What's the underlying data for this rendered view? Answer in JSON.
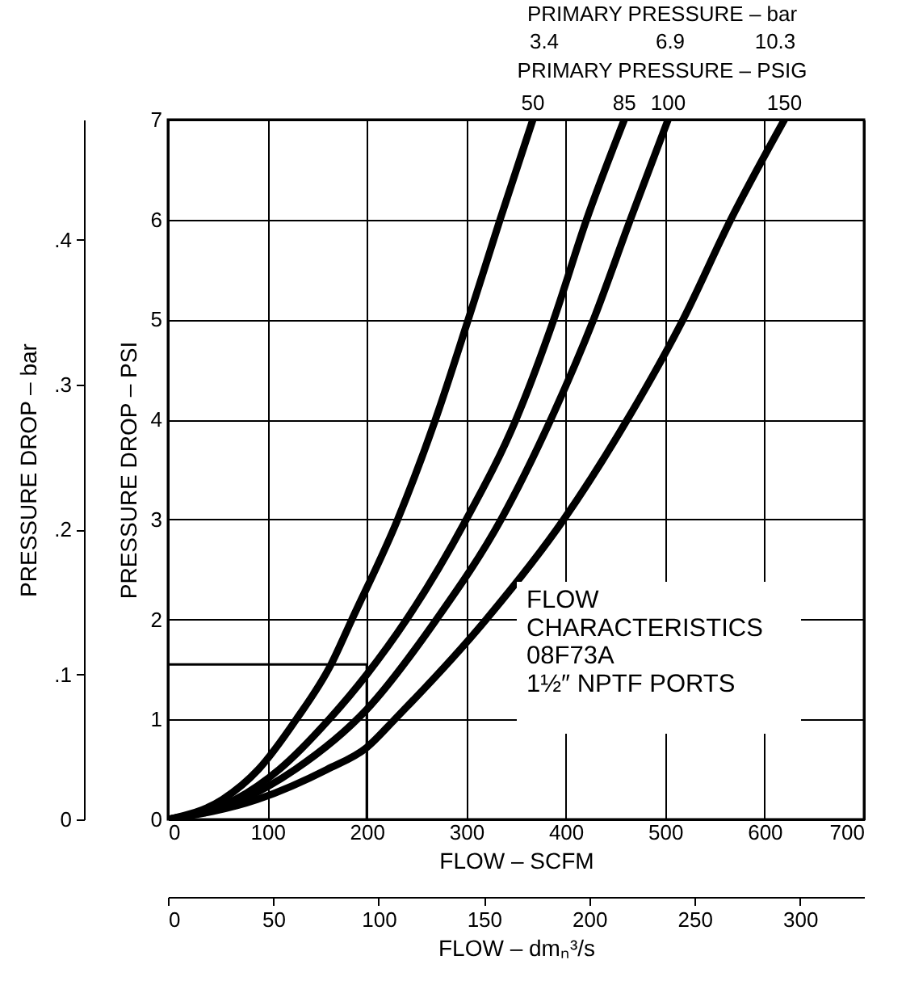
{
  "chart_data": {
    "type": "line",
    "xlabel": "FLOW – SCFM",
    "ylabel": "PRESSURE DROP – PSI",
    "y2label": "PRESSURE DROP – bar",
    "x2label": "FLOW – dmₙ³/s",
    "xlim": [
      0,
      700
    ],
    "xticks": [
      0,
      100,
      200,
      300,
      400,
      500,
      600,
      700
    ],
    "ylim": [
      0,
      7
    ],
    "yticks": [
      0,
      1,
      2,
      3,
      4,
      5,
      6,
      7
    ],
    "y2lim": [
      0,
      0.483
    ],
    "y2ticks": [
      0,
      {
        "value": 0.1,
        "label": ".1"
      },
      {
        "value": 0.2,
        "label": ".2"
      },
      {
        "value": 0.3,
        "label": ".3"
      },
      {
        "value": 0.4,
        "label": ".4"
      }
    ],
    "x2lim": [
      0,
      330.4
    ],
    "x2ticks": [
      0,
      50,
      100,
      150,
      200,
      250,
      300
    ],
    "grid": true,
    "marker": "none",
    "series": [
      {
        "name": "50",
        "color": "#000000",
        "x": [
          0,
          55,
          91,
          129,
          164,
          185,
          231,
          269,
          302,
          334,
          367
        ],
        "values": [
          0,
          0.2,
          0.5,
          1,
          1.55,
          2,
          3,
          4,
          5,
          6,
          7
        ]
      },
      {
        "name": "85",
        "color": "#000000",
        "x": [
          0,
          68,
          112,
          162,
          200,
          240,
          300,
          350,
          388,
          421,
          459
        ],
        "values": [
          0,
          0.2,
          0.5,
          1,
          1.45,
          2,
          3,
          4,
          5,
          6,
          7
        ]
      },
      {
        "name": "100",
        "color": "#000000",
        "x": [
          0,
          75,
          128,
          200,
          270,
          335,
          385,
          428,
          465,
          503
        ],
        "values": [
          0,
          0.2,
          0.5,
          1.1,
          2,
          3,
          4,
          5,
          6,
          7
        ]
      },
      {
        "name": "150",
        "color": "#000000",
        "x": [
          0,
          90,
          160,
          200,
          228,
          320,
          398,
          462,
          518,
          566,
          620
        ],
        "values": [
          0,
          0.2,
          0.5,
          0.72,
          1,
          2,
          3,
          4,
          5,
          6,
          7
        ]
      },
      {
        "color": "#000000",
        "x": [
          0,
          200,
          200
        ],
        "values": [
          1.55,
          1.55,
          0
        ]
      }
    ],
    "annotations": [
      "PRIMARY PRESSURE – bar",
      "PRIMARY PRESSURE – PSIG",
      "FLOW\nCHARACTERISTICS\n08F73A\n1½″ NPTF PORTS",
      "3.4",
      "6.9",
      "10.3"
    ]
  }
}
